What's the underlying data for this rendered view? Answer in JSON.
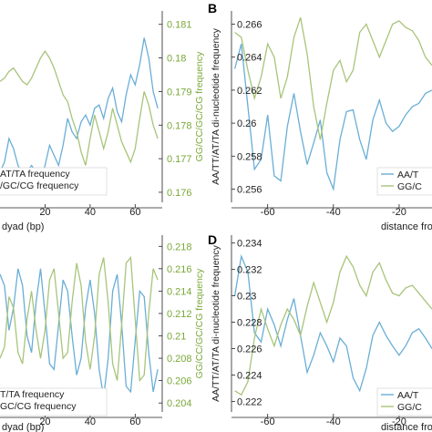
{
  "colors": {
    "blue": "#6aaed6",
    "green": "#a8c47a",
    "green_text": "#7aa83a",
    "axis": "#222222"
  },
  "chart_data": [
    {
      "panel": "A",
      "type": "line",
      "panel_label": "",
      "x": [
        0,
        2,
        4,
        6,
        8,
        10,
        12,
        14,
        16,
        18,
        20,
        22,
        24,
        26,
        28,
        30,
        32,
        34,
        36,
        38,
        40,
        42,
        44,
        46,
        48,
        50,
        52,
        54,
        56,
        58,
        60,
        62,
        64,
        66,
        68,
        70
      ],
      "x_ticks": [
        20,
        40,
        60
      ],
      "xlim": [
        0,
        72
      ],
      "xlabel": "dyad (bp)",
      "y_right_ticks": [
        "0.176",
        "0.177",
        "0.178",
        "0.179",
        "0.18",
        "0.181"
      ],
      "y_right_lim": [
        0.1757,
        0.1814
      ],
      "ylabel_right": "GG/CC/GC/CG frequency",
      "legend": [
        "AT/TA frequency",
        "/GC/CG frequency"
      ],
      "series": [
        {
          "color": "blue",
          "values": [
            0.1766,
            0.1769,
            0.1776,
            0.1773,
            0.1768,
            0.1765,
            0.1766,
            0.1768,
            0.1766,
            0.1762,
            0.1768,
            0.1774,
            0.1771,
            0.1768,
            0.1774,
            0.1782,
            0.1778,
            0.1776,
            0.1781,
            0.1783,
            0.178,
            0.1785,
            0.1786,
            0.1782,
            0.1788,
            0.1791,
            0.1784,
            0.1781,
            0.1789,
            0.1795,
            0.1792,
            0.1798,
            0.1806,
            0.18,
            0.179,
            0.1785
          ]
        },
        {
          "color": "green",
          "values": [
            0.1793,
            0.1794,
            0.1796,
            0.1797,
            0.1795,
            0.1793,
            0.1792,
            0.1794,
            0.1797,
            0.18,
            0.1802,
            0.18,
            0.1797,
            0.1793,
            0.1789,
            0.1787,
            0.1782,
            0.1778,
            0.1772,
            0.1768,
            0.1776,
            0.1783,
            0.1778,
            0.1773,
            0.1778,
            0.1785,
            0.178,
            0.1775,
            0.1772,
            0.1769,
            0.1773,
            0.1782,
            0.179,
            0.1786,
            0.178,
            0.1776
          ]
        }
      ]
    },
    {
      "panel": "B",
      "type": "line",
      "panel_label": "B",
      "x": [
        -70,
        -68,
        -66,
        -64,
        -62,
        -60,
        -58,
        -56,
        -54,
        -52,
        -50,
        -48,
        -46,
        -44,
        -42,
        -40,
        -38,
        -36,
        -34,
        -32,
        -30,
        -28,
        -26,
        -24,
        -22,
        -20,
        -18,
        -16,
        -14,
        -12,
        -10
      ],
      "x_ticks": [
        -60,
        -40,
        -20
      ],
      "xlim": [
        -71,
        -10
      ],
      "xlabel": "distance fro",
      "y_left_ticks": [
        "0.256",
        "0.258",
        "0.26",
        "0.262",
        "0.264",
        "0.266"
      ],
      "y_left_lim": [
        0.2552,
        0.2668
      ],
      "ylabel_left": "AA/TT/AT/TA di-nucleotide frequency",
      "legend": [
        "AA/T",
        "GG/C"
      ],
      "series": [
        {
          "color": "blue",
          "values": [
            0.2633,
            0.2648,
            0.261,
            0.2572,
            0.2578,
            0.2605,
            0.2568,
            0.2565,
            0.2598,
            0.2618,
            0.2595,
            0.2575,
            0.2588,
            0.2602,
            0.257,
            0.256,
            0.259,
            0.2607,
            0.2608,
            0.259,
            0.2578,
            0.2602,
            0.2614,
            0.26,
            0.2595,
            0.2598,
            0.2605,
            0.261,
            0.2612,
            0.2618,
            0.262
          ]
        },
        {
          "color": "green",
          "values": [
            0.2655,
            0.2652,
            0.2632,
            0.2615,
            0.2628,
            0.2648,
            0.264,
            0.2615,
            0.2628,
            0.2652,
            0.2664,
            0.2642,
            0.261,
            0.259,
            0.2612,
            0.2632,
            0.2638,
            0.2625,
            0.2632,
            0.2655,
            0.266,
            0.265,
            0.264,
            0.265,
            0.266,
            0.2662,
            0.2658,
            0.2656,
            0.265,
            0.264,
            0.2635
          ]
        }
      ]
    },
    {
      "panel": "C",
      "type": "line",
      "panel_label": "",
      "x": [
        0,
        2,
        4,
        6,
        8,
        10,
        12,
        14,
        16,
        18,
        20,
        22,
        24,
        26,
        28,
        30,
        32,
        34,
        36,
        38,
        40,
        42,
        44,
        46,
        48,
        50,
        52,
        54,
        56,
        58,
        60,
        62,
        64,
        66,
        68,
        70
      ],
      "x_ticks": [
        20,
        40,
        60
      ],
      "xlim": [
        0,
        72
      ],
      "xlabel": "dyad (bp)",
      "y_right_ticks": [
        "0.204",
        "0.206",
        "0.208",
        "0.21",
        "0.212",
        "0.214",
        "0.216",
        "0.218"
      ],
      "y_right_lim": [
        0.2032,
        0.219
      ],
      "ylabel_right": "GG/CC/GC/CG frequency",
      "legend": [
        "T/TA frequency",
        "GC/CG frequency"
      ],
      "series": [
        {
          "color": "blue",
          "values": [
            0.2155,
            0.2145,
            0.2105,
            0.2125,
            0.216,
            0.2145,
            0.21,
            0.2085,
            0.213,
            0.216,
            0.212,
            0.2075,
            0.207,
            0.211,
            0.215,
            0.214,
            0.21,
            0.2065,
            0.208,
            0.2125,
            0.215,
            0.212,
            0.207,
            0.2045,
            0.208,
            0.214,
            0.2155,
            0.211,
            0.2055,
            0.205,
            0.2095,
            0.214,
            0.2135,
            0.2085,
            0.205,
            0.207
          ]
        },
        {
          "color": "green",
          "values": [
            0.208,
            0.209,
            0.2135,
            0.2125,
            0.2085,
            0.2075,
            0.2115,
            0.214,
            0.2105,
            0.208,
            0.2105,
            0.215,
            0.216,
            0.212,
            0.208,
            0.2085,
            0.213,
            0.2165,
            0.2145,
            0.2095,
            0.207,
            0.21,
            0.2155,
            0.217,
            0.213,
            0.2075,
            0.206,
            0.211,
            0.2165,
            0.217,
            0.2115,
            0.206,
            0.2065,
            0.212,
            0.216,
            0.215
          ]
        }
      ]
    },
    {
      "panel": "D",
      "type": "line",
      "panel_label": "D",
      "x": [
        -70,
        -68,
        -66,
        -64,
        -62,
        -60,
        -58,
        -56,
        -54,
        -52,
        -50,
        -48,
        -46,
        -44,
        -42,
        -40,
        -38,
        -36,
        -34,
        -32,
        -30,
        -28,
        -26,
        -24,
        -22,
        -20,
        -18,
        -16,
        -14,
        -12,
        -10
      ],
      "x_ticks": [
        -60,
        -40,
        -20
      ],
      "xlim": [
        -71,
        -10
      ],
      "xlabel": "distance fro",
      "y_left_ticks": [
        "0.222",
        "0.224",
        "0.226",
        "0.228",
        "0.23",
        "0.232",
        "0.234"
      ],
      "y_left_lim": [
        0.2212,
        0.2346
      ],
      "ylabel_left": "AA/TT/AT/TA di-nucleotide frequency",
      "legend": [
        "AA/T",
        "GG/C"
      ],
      "series": [
        {
          "color": "blue",
          "values": [
            0.23,
            0.233,
            0.2318,
            0.2272,
            0.2265,
            0.229,
            0.2278,
            0.2262,
            0.2282,
            0.2298,
            0.227,
            0.2242,
            0.2255,
            0.2272,
            0.2262,
            0.225,
            0.2268,
            0.2262,
            0.2238,
            0.2228,
            0.2245,
            0.227,
            0.228,
            0.227,
            0.2262,
            0.2255,
            0.2262,
            0.2272,
            0.2275,
            0.2268,
            0.226
          ]
        },
        {
          "color": "green",
          "values": [
            0.2228,
            0.2225,
            0.2235,
            0.2268,
            0.229,
            0.2275,
            0.2262,
            0.2278,
            0.229,
            0.2282,
            0.227,
            0.2292,
            0.231,
            0.2295,
            0.228,
            0.2295,
            0.2318,
            0.233,
            0.2322,
            0.2308,
            0.23,
            0.2318,
            0.2325,
            0.2312,
            0.2302,
            0.23,
            0.2306,
            0.2308,
            0.2302,
            0.2296,
            0.229
          ]
        }
      ]
    }
  ]
}
